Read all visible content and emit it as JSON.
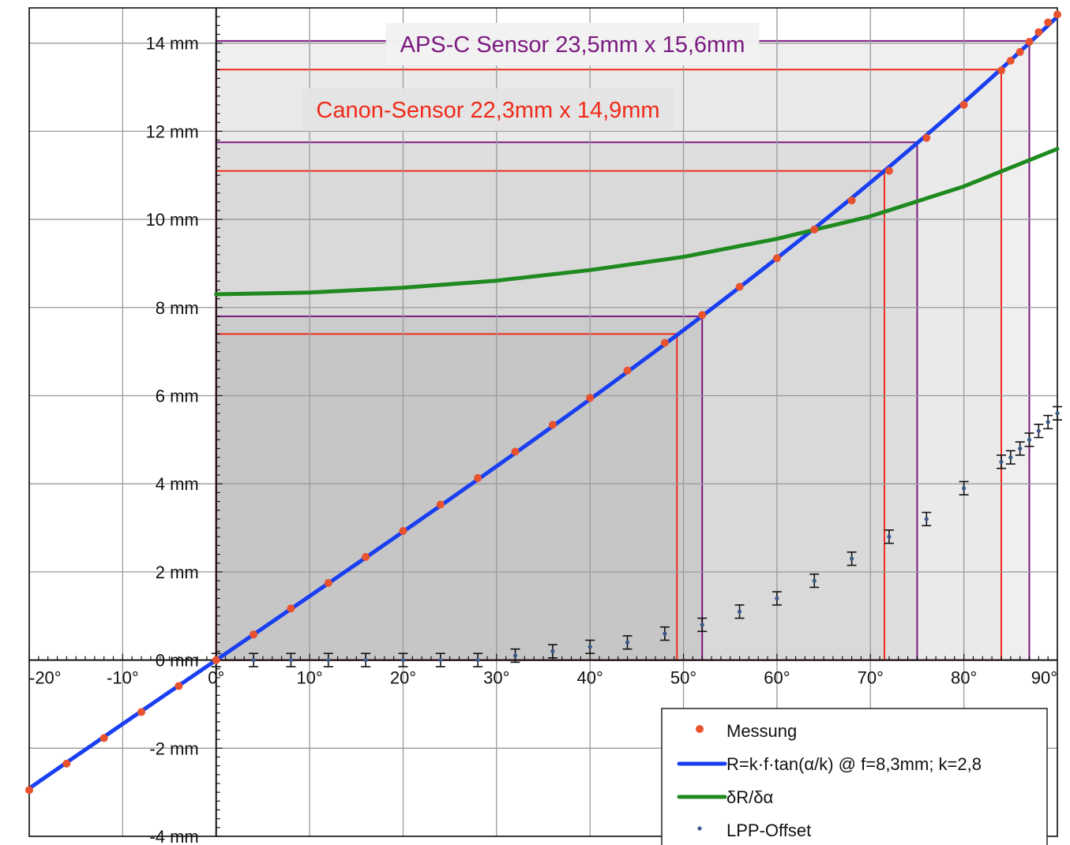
{
  "chart_data": {
    "type": "scatter",
    "xlim": [
      -20,
      90
    ],
    "ylim": [
      -4,
      14.8
    ],
    "x_ticks": [
      -20,
      -10,
      0,
      10,
      20,
      30,
      40,
      50,
      60,
      70,
      80,
      90
    ],
    "x_tick_labels": [
      "-20°",
      "-10°",
      "0°",
      "10°",
      "20°",
      "30°",
      "40°",
      "50°",
      "60°",
      "70°",
      "80°",
      "90°"
    ],
    "y_ticks": [
      -4,
      -2,
      0,
      2,
      4,
      6,
      8,
      10,
      12,
      14
    ],
    "y_tick_labels": [
      "-4 mm",
      "-2 mm",
      "0 mm",
      "2 mm",
      "4 mm",
      "6 mm",
      "8 mm",
      "10 mm",
      "12 mm",
      "14 mm"
    ],
    "grid": true,
    "legend_position": "bottom-right",
    "sensors": [
      {
        "label": "APS-C Sensor  23,5mm x 15,6mm",
        "color": "#7b1a80",
        "boxes": [
          {
            "x_max": 52,
            "y_max": 7.8
          },
          {
            "x_max": 75,
            "y_max": 11.75
          },
          {
            "x_max": 87,
            "y_max": 14.05
          }
        ]
      },
      {
        "label": "Canon-Sensor  22,3mm x 14,9mm",
        "color": "#f02a1a",
        "boxes": [
          {
            "x_max": 49.3,
            "y_max": 7.4
          },
          {
            "x_max": 71.5,
            "y_max": 11.1
          },
          {
            "x_max": 84,
            "y_max": 13.4
          }
        ]
      }
    ],
    "series": [
      {
        "name": "Messung",
        "kind": "scatter",
        "color": "#e8522e",
        "x": [
          -20,
          -16,
          -12,
          -8,
          -4,
          0,
          4,
          8,
          12,
          16,
          20,
          24,
          28,
          32,
          36,
          40,
          44,
          48,
          52,
          56,
          60,
          64,
          68,
          72,
          76,
          80,
          84,
          85,
          86,
          87,
          88,
          89,
          90
        ],
        "y": [
          -2.95,
          -2.35,
          -1.77,
          -1.18,
          -0.59,
          0,
          0.58,
          1.17,
          1.75,
          2.34,
          2.93,
          3.53,
          4.13,
          4.73,
          5.34,
          5.95,
          6.57,
          7.2,
          7.83,
          8.47,
          9.12,
          9.77,
          10.43,
          11.1,
          11.85,
          12.6,
          13.38,
          13.6,
          13.8,
          14.03,
          14.25,
          14.47,
          14.65
        ]
      },
      {
        "name": "R=k·f·tan(α/k) @ f=8,3mm; k=2,8",
        "kind": "line",
        "color": "#1a3ff0",
        "f": 8.3,
        "k": 2.8
      },
      {
        "name": "δR/δα",
        "kind": "line",
        "color": "#1f8a1f",
        "x": [
          0,
          10,
          20,
          30,
          40,
          50,
          60,
          70,
          80,
          90
        ],
        "y": [
          8.3,
          8.34,
          8.45,
          8.61,
          8.85,
          9.15,
          9.56,
          10.07,
          10.75,
          11.6
        ]
      },
      {
        "name": "LPP-Offset",
        "kind": "errorbar",
        "color": "#3a5a88",
        "x": [
          0,
          4,
          8,
          12,
          16,
          20,
          24,
          28,
          32,
          36,
          40,
          44,
          48,
          52,
          56,
          60,
          64,
          68,
          72,
          76,
          80,
          84,
          85,
          86,
          87,
          88,
          89,
          90
        ],
        "y": [
          0,
          0,
          0,
          0,
          0,
          0,
          0,
          0,
          0.1,
          0.2,
          0.3,
          0.4,
          0.6,
          0.8,
          1.1,
          1.4,
          1.8,
          2.3,
          2.8,
          3.2,
          3.9,
          4.5,
          4.6,
          4.8,
          5.0,
          5.2,
          5.4,
          5.6
        ],
        "err": 0.15
      }
    ]
  }
}
